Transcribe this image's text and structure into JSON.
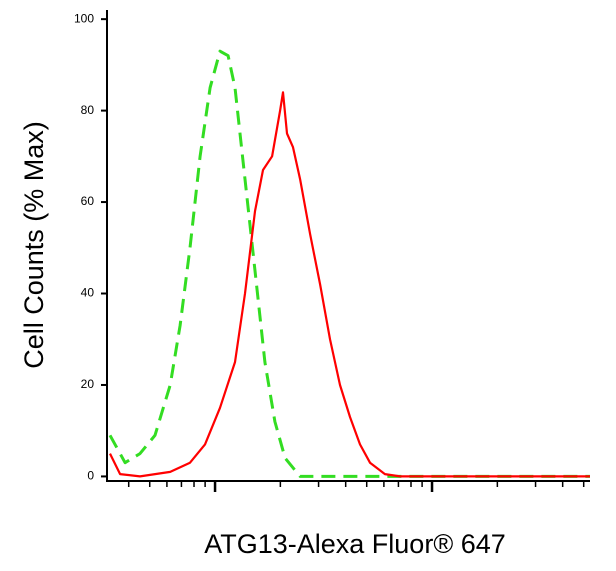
{
  "chart_data": {
    "type": "line",
    "x_label": "ATG13-Alexa Fluor® 647",
    "y_label": "Cell Counts (% Max)",
    "xscale": "log",
    "xlim": [
      328,
      53460
    ],
    "xticks": [
      1000,
      10000
    ],
    "ylim": [
      -1,
      102
    ],
    "yticks": [
      0,
      20,
      40,
      60,
      80,
      100
    ],
    "series": [
      {
        "color": "#33dd22",
        "dashed": true,
        "x": [
          328,
          385,
          451,
          529,
          621,
          690,
          767,
          853,
          949,
          1054,
          1148,
          1236,
          1374,
          1528,
          1698,
          1888,
          2103,
          2466,
          4188,
          53460
        ],
        "values": [
          9,
          3,
          5,
          9,
          20,
          33,
          50,
          70,
          85,
          93,
          92,
          85,
          65,
          45,
          25,
          12,
          4,
          0,
          0,
          0
        ]
      },
      {
        "color": "#ff0000",
        "dashed": false,
        "x": [
          328,
          365,
          451,
          621,
          767,
          899,
          1054,
          1236,
          1374,
          1528,
          1663,
          1832,
          1995,
          2057,
          2147,
          2288,
          2466,
          2742,
          3048,
          3388,
          3767,
          4188,
          4656,
          5176,
          6067,
          7128,
          53460
        ],
        "values": [
          5,
          0.5,
          0,
          1,
          3,
          7,
          15,
          25,
          40,
          58,
          67,
          70,
          80,
          84,
          75,
          72,
          65,
          53,
          42,
          30,
          20,
          13,
          7,
          3,
          0.5,
          0,
          0
        ]
      }
    ]
  }
}
